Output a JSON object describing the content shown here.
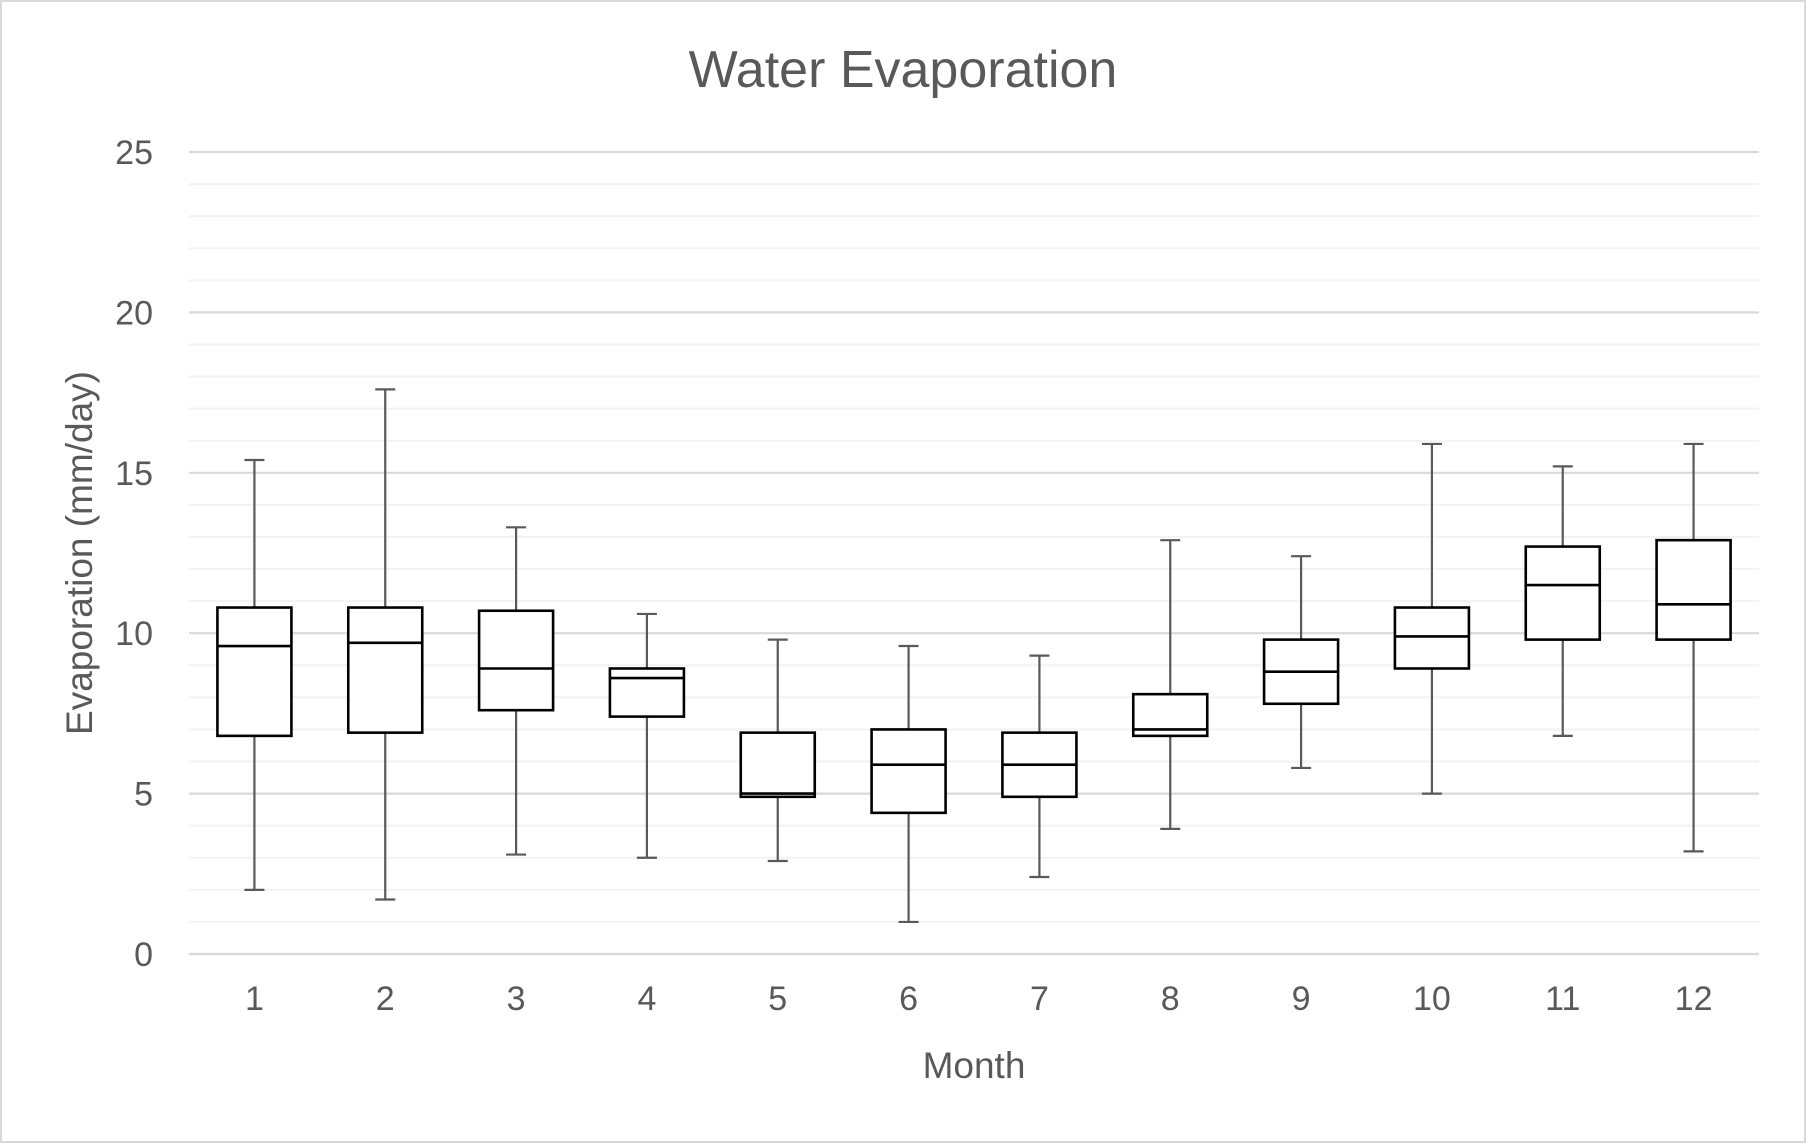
{
  "chart_data": {
    "type": "boxplot",
    "title": "Water Evaporation",
    "xlabel": "Month",
    "ylabel": "Evaporation (mm/day)",
    "ylim": [
      0,
      25
    ],
    "major_ticks": [
      0,
      5,
      10,
      15,
      20,
      25
    ],
    "minor_step": 1,
    "grid": true,
    "legend": "none",
    "categories": [
      "1",
      "2",
      "3",
      "4",
      "5",
      "6",
      "7",
      "8",
      "9",
      "10",
      "11",
      "12"
    ],
    "boxes": [
      {
        "month": "1",
        "min": 2.0,
        "q1": 6.8,
        "median": 9.6,
        "q3": 10.8,
        "max": 15.4
      },
      {
        "month": "2",
        "min": 1.7,
        "q1": 6.9,
        "median": 9.7,
        "q3": 10.8,
        "max": 17.6
      },
      {
        "month": "3",
        "min": 3.1,
        "q1": 7.6,
        "median": 8.9,
        "q3": 10.7,
        "max": 13.3
      },
      {
        "month": "4",
        "min": 3.0,
        "q1": 7.4,
        "median": 8.6,
        "q3": 8.9,
        "max": 10.6
      },
      {
        "month": "5",
        "min": 2.9,
        "q1": 4.9,
        "median": 5.0,
        "q3": 6.9,
        "max": 9.8
      },
      {
        "month": "6",
        "min": 1.0,
        "q1": 4.4,
        "median": 5.9,
        "q3": 7.0,
        "max": 9.6
      },
      {
        "month": "7",
        "min": 2.4,
        "q1": 4.9,
        "median": 5.9,
        "q3": 6.9,
        "max": 9.3
      },
      {
        "month": "8",
        "min": 3.9,
        "q1": 6.8,
        "median": 7.0,
        "q3": 8.1,
        "max": 12.9
      },
      {
        "month": "9",
        "min": 5.8,
        "q1": 7.8,
        "median": 8.8,
        "q3": 9.8,
        "max": 12.4
      },
      {
        "month": "10",
        "min": 5.0,
        "q1": 8.9,
        "median": 9.9,
        "q3": 10.8,
        "max": 15.9
      },
      {
        "month": "11",
        "min": 6.8,
        "q1": 9.8,
        "median": 11.5,
        "q3": 12.7,
        "max": 15.2
      },
      {
        "month": "12",
        "min": 3.2,
        "q1": 9.8,
        "median": 10.9,
        "q3": 12.9,
        "max": 15.9
      }
    ],
    "colors": {
      "box_stroke": "#000000",
      "whisker": "#595959",
      "major_grid": "#d9d9d9",
      "minor_grid": "#f2f2f2",
      "text": "#595959",
      "border": "#d9d9d9"
    }
  }
}
